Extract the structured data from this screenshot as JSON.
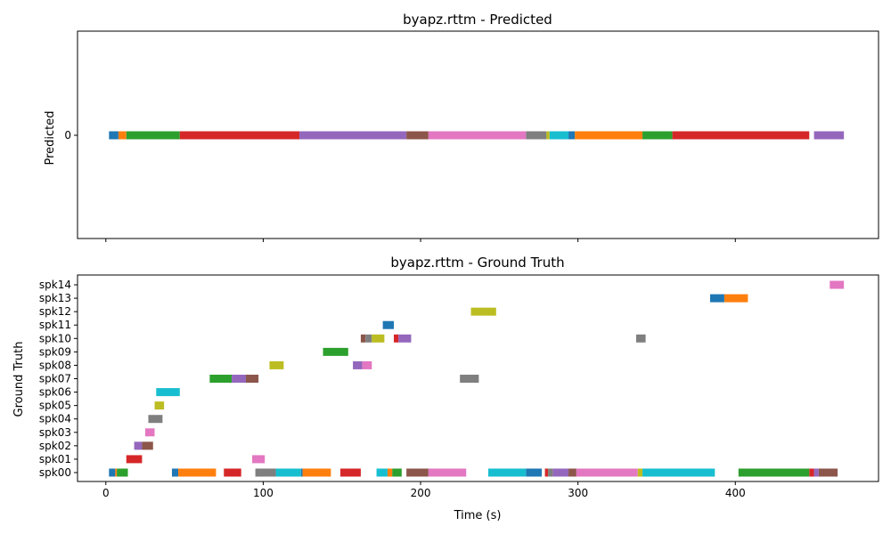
{
  "chart_data": [
    {
      "type": "timeline",
      "title": "byapz.rttm - Predicted",
      "xlabel": "",
      "ylabel": "Predicted",
      "xlim": [
        -18,
        491
      ],
      "x_ticks": [
        0,
        100,
        200,
        300,
        400
      ],
      "x_tick_labels_visible": false,
      "rows": [
        "0"
      ],
      "segments": [
        {
          "row": "0",
          "start": 2,
          "end": 8,
          "color": "#1f77b4"
        },
        {
          "row": "0",
          "start": 8,
          "end": 13,
          "color": "#ff7f0e"
        },
        {
          "row": "0",
          "start": 13,
          "end": 47,
          "color": "#2ca02c"
        },
        {
          "row": "0",
          "start": 47,
          "end": 123,
          "color": "#d62728"
        },
        {
          "row": "0",
          "start": 123,
          "end": 191,
          "color": "#9467bd"
        },
        {
          "row": "0",
          "start": 191,
          "end": 205,
          "color": "#8c564b"
        },
        {
          "row": "0",
          "start": 205,
          "end": 267,
          "color": "#e377c2"
        },
        {
          "row": "0",
          "start": 267,
          "end": 280,
          "color": "#7f7f7f"
        },
        {
          "row": "0",
          "start": 280,
          "end": 282,
          "color": "#bcbd22"
        },
        {
          "row": "0",
          "start": 282,
          "end": 294,
          "color": "#17becf"
        },
        {
          "row": "0",
          "start": 294,
          "end": 298,
          "color": "#1f77b4"
        },
        {
          "row": "0",
          "start": 298,
          "end": 341,
          "color": "#ff7f0e"
        },
        {
          "row": "0",
          "start": 341,
          "end": 360,
          "color": "#2ca02c"
        },
        {
          "row": "0",
          "start": 360,
          "end": 447,
          "color": "#d62728"
        },
        {
          "row": "0",
          "start": 450,
          "end": 469,
          "color": "#9467bd"
        }
      ]
    },
    {
      "type": "timeline",
      "title": "byapz.rttm - Ground Truth",
      "xlabel": "Time (s)",
      "ylabel": "Ground Truth",
      "xlim": [
        -18,
        491
      ],
      "x_ticks": [
        0,
        100,
        200,
        300,
        400
      ],
      "x_tick_labels_visible": true,
      "rows": [
        "spk00",
        "spk01",
        "spk02",
        "spk03",
        "spk04",
        "spk05",
        "spk06",
        "spk07",
        "spk08",
        "spk09",
        "spk10",
        "spk11",
        "spk12",
        "spk13",
        "spk14"
      ],
      "segments": [
        {
          "row": "spk00",
          "start": 2,
          "end": 6,
          "color": "#1f77b4"
        },
        {
          "row": "spk00",
          "start": 6,
          "end": 7,
          "color": "#ff7f0e"
        },
        {
          "row": "spk00",
          "start": 7,
          "end": 14,
          "color": "#2ca02c"
        },
        {
          "row": "spk00",
          "start": 42,
          "end": 46,
          "color": "#1f77b4"
        },
        {
          "row": "spk00",
          "start": 46,
          "end": 70,
          "color": "#ff7f0e"
        },
        {
          "row": "spk00",
          "start": 75,
          "end": 86,
          "color": "#d62728"
        },
        {
          "row": "spk00",
          "start": 95,
          "end": 108,
          "color": "#7f7f7f"
        },
        {
          "row": "spk00",
          "start": 108,
          "end": 124,
          "color": "#17becf"
        },
        {
          "row": "spk00",
          "start": 124,
          "end": 125,
          "color": "#1f77b4"
        },
        {
          "row": "spk00",
          "start": 125,
          "end": 143,
          "color": "#ff7f0e"
        },
        {
          "row": "spk00",
          "start": 149,
          "end": 162,
          "color": "#d62728"
        },
        {
          "row": "spk00",
          "start": 172,
          "end": 179,
          "color": "#17becf"
        },
        {
          "row": "spk00",
          "start": 179,
          "end": 182,
          "color": "#ff7f0e"
        },
        {
          "row": "spk00",
          "start": 182,
          "end": 188,
          "color": "#2ca02c"
        },
        {
          "row": "spk00",
          "start": 191,
          "end": 205,
          "color": "#8c564b"
        },
        {
          "row": "spk00",
          "start": 205,
          "end": 229,
          "color": "#e377c2"
        },
        {
          "row": "spk00",
          "start": 243,
          "end": 267,
          "color": "#17becf"
        },
        {
          "row": "spk00",
          "start": 267,
          "end": 277,
          "color": "#1f77b4"
        },
        {
          "row": "spk00",
          "start": 279,
          "end": 281,
          "color": "#d62728"
        },
        {
          "row": "spk00",
          "start": 281,
          "end": 284,
          "color": "#7f7f7f"
        },
        {
          "row": "spk00",
          "start": 284,
          "end": 294,
          "color": "#9467bd"
        },
        {
          "row": "spk00",
          "start": 294,
          "end": 299,
          "color": "#8c564b"
        },
        {
          "row": "spk00",
          "start": 299,
          "end": 338,
          "color": "#e377c2"
        },
        {
          "row": "spk00",
          "start": 338,
          "end": 341,
          "color": "#bcbd22"
        },
        {
          "row": "spk00",
          "start": 341,
          "end": 387,
          "color": "#17becf"
        },
        {
          "row": "spk00",
          "start": 402,
          "end": 447,
          "color": "#2ca02c"
        },
        {
          "row": "spk00",
          "start": 447,
          "end": 450,
          "color": "#d62728"
        },
        {
          "row": "spk00",
          "start": 450,
          "end": 453,
          "color": "#9467bd"
        },
        {
          "row": "spk00",
          "start": 453,
          "end": 465,
          "color": "#8c564b"
        },
        {
          "row": "spk01",
          "start": 13,
          "end": 23,
          "color": "#d62728"
        },
        {
          "row": "spk01",
          "start": 93,
          "end": 101,
          "color": "#e377c2"
        },
        {
          "row": "spk02",
          "start": 18,
          "end": 23,
          "color": "#9467bd"
        },
        {
          "row": "spk02",
          "start": 23,
          "end": 30,
          "color": "#8c564b"
        },
        {
          "row": "spk03",
          "start": 25,
          "end": 31,
          "color": "#e377c2"
        },
        {
          "row": "spk04",
          "start": 27,
          "end": 36,
          "color": "#7f7f7f"
        },
        {
          "row": "spk05",
          "start": 31,
          "end": 37,
          "color": "#bcbd22"
        },
        {
          "row": "spk06",
          "start": 32,
          "end": 47,
          "color": "#17becf"
        },
        {
          "row": "spk07",
          "start": 66,
          "end": 80,
          "color": "#2ca02c"
        },
        {
          "row": "spk07",
          "start": 80,
          "end": 89,
          "color": "#9467bd"
        },
        {
          "row": "spk07",
          "start": 89,
          "end": 97,
          "color": "#8c564b"
        },
        {
          "row": "spk07",
          "start": 225,
          "end": 237,
          "color": "#7f7f7f"
        },
        {
          "row": "spk08",
          "start": 104,
          "end": 113,
          "color": "#bcbd22"
        },
        {
          "row": "spk08",
          "start": 157,
          "end": 163,
          "color": "#9467bd"
        },
        {
          "row": "spk08",
          "start": 163,
          "end": 169,
          "color": "#e377c2"
        },
        {
          "row": "spk09",
          "start": 138,
          "end": 154,
          "color": "#2ca02c"
        },
        {
          "row": "spk10",
          "start": 162,
          "end": 165,
          "color": "#8c564b"
        },
        {
          "row": "spk10",
          "start": 165,
          "end": 169,
          "color": "#7f7f7f"
        },
        {
          "row": "spk10",
          "start": 169,
          "end": 177,
          "color": "#bcbd22"
        },
        {
          "row": "spk10",
          "start": 183,
          "end": 186,
          "color": "#d62728"
        },
        {
          "row": "spk10",
          "start": 186,
          "end": 194,
          "color": "#9467bd"
        },
        {
          "row": "spk10",
          "start": 337,
          "end": 343,
          "color": "#7f7f7f"
        },
        {
          "row": "spk11",
          "start": 176,
          "end": 183,
          "color": "#1f77b4"
        },
        {
          "row": "spk12",
          "start": 232,
          "end": 248,
          "color": "#bcbd22"
        },
        {
          "row": "spk13",
          "start": 384,
          "end": 393,
          "color": "#1f77b4"
        },
        {
          "row": "spk13",
          "start": 393,
          "end": 408,
          "color": "#ff7f0e"
        },
        {
          "row": "spk14",
          "start": 460,
          "end": 469,
          "color": "#e377c2"
        }
      ]
    }
  ]
}
